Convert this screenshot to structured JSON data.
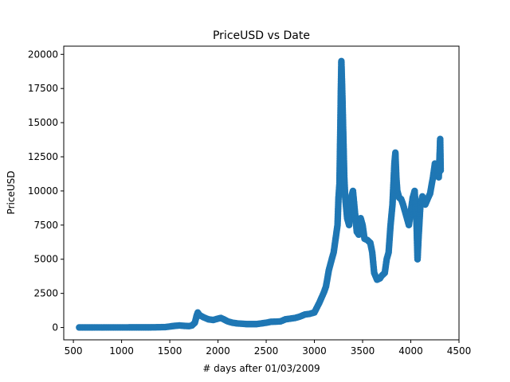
{
  "chart_data": {
    "type": "scatter",
    "title": "PriceUSD vs Date",
    "xlabel": "# days after 01/03/2009",
    "ylabel": "PriceUSD",
    "xlim": [
      400,
      4500
    ],
    "ylim": [
      -900,
      20600
    ],
    "x_ticks": [
      500,
      1000,
      1500,
      2000,
      2500,
      3000,
      3500,
      4000,
      4500
    ],
    "y_ticks": [
      0,
      2500,
      5000,
      7500,
      10000,
      12500,
      15000,
      17500,
      20000
    ],
    "grid": false,
    "legend": "none",
    "marker_color": "#1f77b4",
    "curve": [
      [
        560,
        5
      ],
      [
        700,
        5
      ],
      [
        900,
        8
      ],
      [
        1100,
        10
      ],
      [
        1300,
        10
      ],
      [
        1450,
        30
      ],
      [
        1550,
        120
      ],
      [
        1600,
        150
      ],
      [
        1650,
        120
      ],
      [
        1700,
        100
      ],
      [
        1730,
        150
      ],
      [
        1760,
        350
      ],
      [
        1780,
        900
      ],
      [
        1790,
        1100
      ],
      [
        1810,
        900
      ],
      [
        1850,
        750
      ],
      [
        1900,
        600
      ],
      [
        1950,
        550
      ],
      [
        2000,
        650
      ],
      [
        2030,
        700
      ],
      [
        2060,
        600
      ],
      [
        2100,
        450
      ],
      [
        2150,
        350
      ],
      [
        2200,
        300
      ],
      [
        2300,
        250
      ],
      [
        2400,
        250
      ],
      [
        2450,
        300
      ],
      [
        2500,
        350
      ],
      [
        2550,
        420
      ],
      [
        2600,
        430
      ],
      [
        2650,
        450
      ],
      [
        2700,
        600
      ],
      [
        2750,
        650
      ],
      [
        2800,
        700
      ],
      [
        2850,
        800
      ],
      [
        2900,
        950
      ],
      [
        2950,
        1000
      ],
      [
        3000,
        1100
      ],
      [
        3050,
        1800
      ],
      [
        3100,
        2600
      ],
      [
        3120,
        3000
      ],
      [
        3150,
        4200
      ],
      [
        3180,
        5000
      ],
      [
        3200,
        5500
      ],
      [
        3220,
        6500
      ],
      [
        3240,
        7500
      ],
      [
        3250,
        9500
      ],
      [
        3260,
        10500
      ],
      [
        3270,
        15000
      ],
      [
        3275,
        17500
      ],
      [
        3280,
        19500
      ],
      [
        3290,
        17000
      ],
      [
        3300,
        14000
      ],
      [
        3310,
        11000
      ],
      [
        3320,
        9500
      ],
      [
        3340,
        8000
      ],
      [
        3360,
        7500
      ],
      [
        3380,
        9500
      ],
      [
        3400,
        10000
      ],
      [
        3420,
        8500
      ],
      [
        3440,
        7000
      ],
      [
        3460,
        6800
      ],
      [
        3480,
        8000
      ],
      [
        3500,
        7500
      ],
      [
        3520,
        6500
      ],
      [
        3550,
        6400
      ],
      [
        3580,
        6200
      ],
      [
        3600,
        5500
      ],
      [
        3620,
        4000
      ],
      [
        3650,
        3500
      ],
      [
        3680,
        3600
      ],
      [
        3700,
        3800
      ],
      [
        3730,
        4000
      ],
      [
        3750,
        5000
      ],
      [
        3770,
        5500
      ],
      [
        3790,
        7500
      ],
      [
        3810,
        9000
      ],
      [
        3830,
        12000
      ],
      [
        3840,
        12800
      ],
      [
        3850,
        11000
      ],
      [
        3860,
        10000
      ],
      [
        3880,
        9500
      ],
      [
        3900,
        9400
      ],
      [
        3920,
        9000
      ],
      [
        3940,
        8500
      ],
      [
        3960,
        8000
      ],
      [
        3980,
        7500
      ],
      [
        4000,
        8500
      ],
      [
        4020,
        9500
      ],
      [
        4040,
        10000
      ],
      [
        4060,
        7500
      ],
      [
        4070,
        5000
      ],
      [
        4080,
        6500
      ],
      [
        4100,
        9000
      ],
      [
        4120,
        9600
      ],
      [
        4150,
        9000
      ],
      [
        4180,
        9500
      ],
      [
        4200,
        9800
      ],
      [
        4230,
        11000
      ],
      [
        4250,
        12000
      ],
      [
        4270,
        11500
      ],
      [
        4290,
        11000
      ],
      [
        4300,
        12800
      ],
      [
        4305,
        13800
      ],
      [
        4310,
        11500
      ]
    ]
  }
}
